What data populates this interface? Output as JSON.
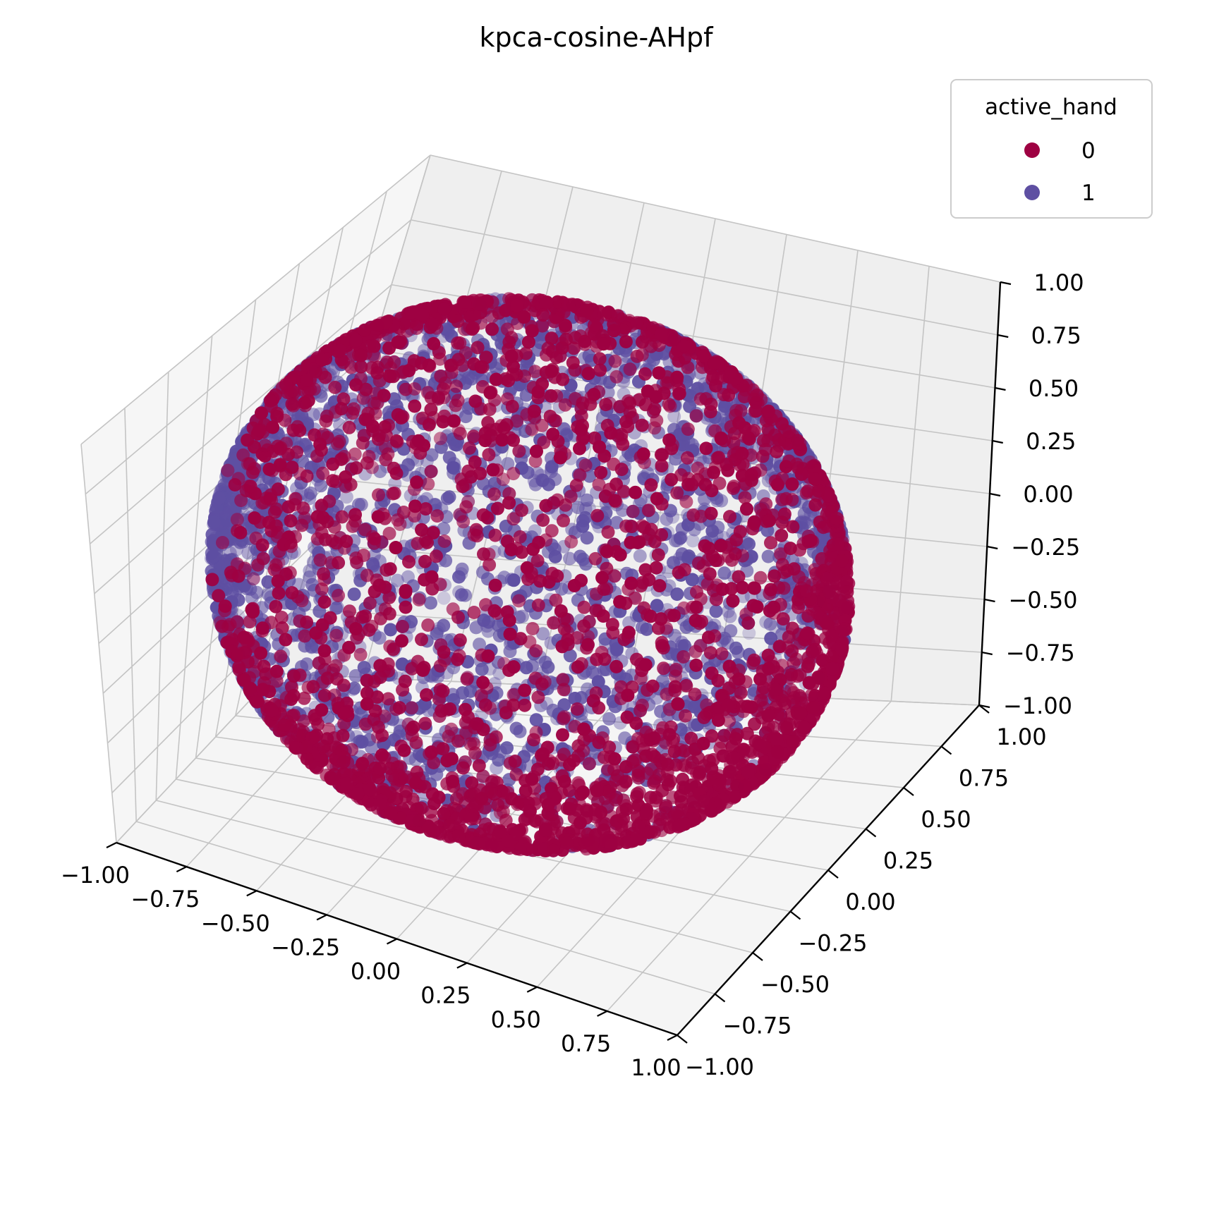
{
  "chart_data": {
    "type": "scatter",
    "projection": "3d",
    "title": "kpca-cosine-AHpf",
    "xlabel": "",
    "ylabel": "",
    "zlabel": "",
    "xlim": [
      -1.0,
      1.0
    ],
    "ylim": [
      -1.0,
      1.0
    ],
    "zlim": [
      -1.0,
      1.0
    ],
    "x_ticks": [
      "−1.00",
      "−0.75",
      "−0.50",
      "−0.25",
      "0.00",
      "0.25",
      "0.50",
      "0.75",
      "1.00"
    ],
    "y_ticks": [
      "−1.00",
      "−0.75",
      "−0.50",
      "−0.25",
      "0.00",
      "0.25",
      "0.50",
      "0.75",
      "1.00"
    ],
    "z_ticks": [
      "−1.00",
      "−0.75",
      "−0.50",
      "−0.25",
      "0.00",
      "0.25",
      "0.50",
      "0.75",
      "1.00"
    ],
    "grid": true,
    "legend": {
      "title": "active_hand",
      "placement": "top-right"
    },
    "series": [
      {
        "name": "0",
        "color": "#9e0142",
        "distribution": "unit-sphere surface, concentrated at negative y / positive x hemisphere (dense band along lower rim and right side)"
      },
      {
        "name": "1",
        "color": "#5e4fa2",
        "distribution": "unit-sphere surface, concentrated at positive y / negative x hemisphere (dense upper-left cap)"
      }
    ]
  }
}
